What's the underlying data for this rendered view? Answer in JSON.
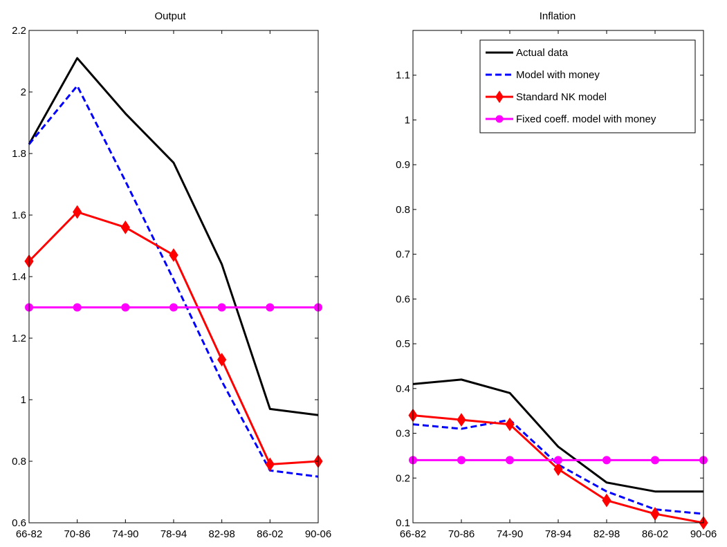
{
  "chart_data": [
    {
      "type": "line",
      "title": "Output",
      "xlabel": "",
      "ylabel": "",
      "categories": [
        "66-82",
        "70-86",
        "74-90",
        "78-94",
        "82-98",
        "86-02",
        "90-06"
      ],
      "ylim": [
        0.6,
        2.2
      ],
      "yticks": [
        "0.6",
        "0.8",
        "1",
        "1.2",
        "1.4",
        "1.6",
        "1.8",
        "2",
        "2.2"
      ],
      "grid": false,
      "legend": false,
      "series": [
        {
          "name": "Actual data",
          "color": "#000000",
          "style": "solid",
          "marker": "none",
          "values": [
            1.83,
            2.11,
            1.93,
            1.77,
            1.44,
            0.97,
            0.95
          ]
        },
        {
          "name": "Model with money",
          "color": "#0000ff",
          "style": "dashed",
          "marker": "none",
          "values": [
            1.83,
            2.02,
            1.71,
            1.39,
            1.06,
            0.77,
            0.75
          ]
        },
        {
          "name": "Standard NK model",
          "color": "#ff0000",
          "style": "solid",
          "marker": "diamond",
          "values": [
            1.45,
            1.61,
            1.56,
            1.47,
            1.13,
            0.79,
            0.8
          ]
        },
        {
          "name": "Fixed coeff. model with money",
          "color": "#ff00ff",
          "style": "solid",
          "marker": "circle",
          "values": [
            1.3,
            1.3,
            1.3,
            1.3,
            1.3,
            1.3,
            1.3
          ]
        }
      ]
    },
    {
      "type": "line",
      "title": "Inflation",
      "xlabel": "",
      "ylabel": "",
      "categories": [
        "66-82",
        "70-86",
        "74-90",
        "78-94",
        "82-98",
        "86-02",
        "90-06"
      ],
      "ylim": [
        0.1,
        1.2
      ],
      "yticks": [
        "0.1",
        "0.2",
        "0.3",
        "0.4",
        "0.5",
        "0.6",
        "0.7",
        "0.8",
        "0.9",
        "1",
        "1.1"
      ],
      "grid": false,
      "legend": true,
      "legend_position": "top-right",
      "series": [
        {
          "name": "Actual data",
          "color": "#000000",
          "style": "solid",
          "marker": "none",
          "values": [
            0.41,
            0.42,
            0.39,
            0.27,
            0.19,
            0.17,
            0.17
          ]
        },
        {
          "name": "Model with money",
          "color": "#0000ff",
          "style": "dashed",
          "marker": "none",
          "values": [
            0.32,
            0.31,
            0.33,
            0.23,
            0.17,
            0.13,
            0.12
          ]
        },
        {
          "name": "Standard NK model",
          "color": "#ff0000",
          "style": "solid",
          "marker": "diamond",
          "values": [
            0.34,
            0.33,
            0.32,
            0.22,
            0.15,
            0.12,
            0.1
          ]
        },
        {
          "name": "Fixed coeff. model with money",
          "color": "#ff00ff",
          "style": "solid",
          "marker": "circle",
          "values": [
            0.24,
            0.24,
            0.24,
            0.24,
            0.24,
            0.24,
            0.24
          ]
        }
      ]
    }
  ]
}
